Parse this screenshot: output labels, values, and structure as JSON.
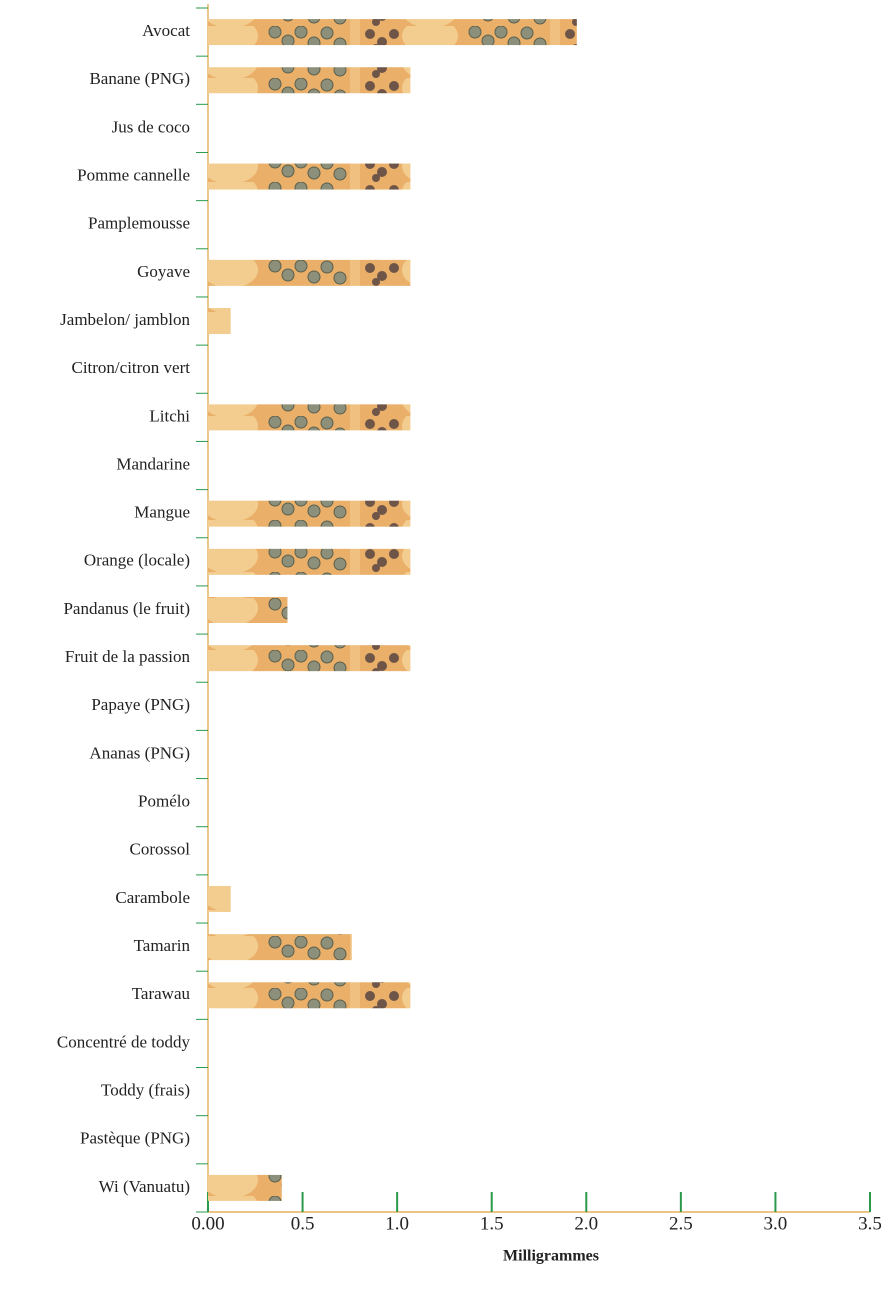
{
  "chart_data": {
    "type": "bar",
    "orientation": "horizontal",
    "categories": [
      "Avocat",
      "Banane (PNG)",
      "Jus de coco",
      "Pomme cannelle",
      "Pamplemousse",
      "Goyave",
      "Jambelon/ jamblon",
      "Citron/citron vert",
      "Litchi",
      "Mandarine",
      "Mangue",
      "Orange (locale)",
      "Pandanus (le fruit)",
      "Fruit de la passion",
      "Papaye (PNG)",
      "Ananas (PNG)",
      "Pomélo",
      "Corossol",
      "Carambole",
      "Tamarin",
      "Tarawau",
      "Concentré de toddy",
      "Toddy (frais)",
      "Pastèque (PNG)",
      "Wi (Vanuatu)"
    ],
    "values": [
      1.95,
      1.07,
      0,
      1.07,
      0,
      1.07,
      0.12,
      0,
      1.07,
      0,
      1.07,
      1.07,
      0.42,
      1.07,
      0,
      0,
      0,
      0,
      0.12,
      0.76,
      1.07,
      0,
      0,
      0,
      0.39
    ],
    "color": "#eab06a",
    "xlabel": "Milligrammes",
    "xlim": [
      0,
      3.5
    ],
    "xticks": [
      {
        "value": 0,
        "label": "0.00"
      },
      0.5,
      {
        "value": 1,
        "label": "1.0"
      },
      1.5,
      {
        "value": 2,
        "label": "2.0"
      },
      2.5,
      {
        "value": 3,
        "label": "3.0"
      },
      3.5
    ]
  }
}
